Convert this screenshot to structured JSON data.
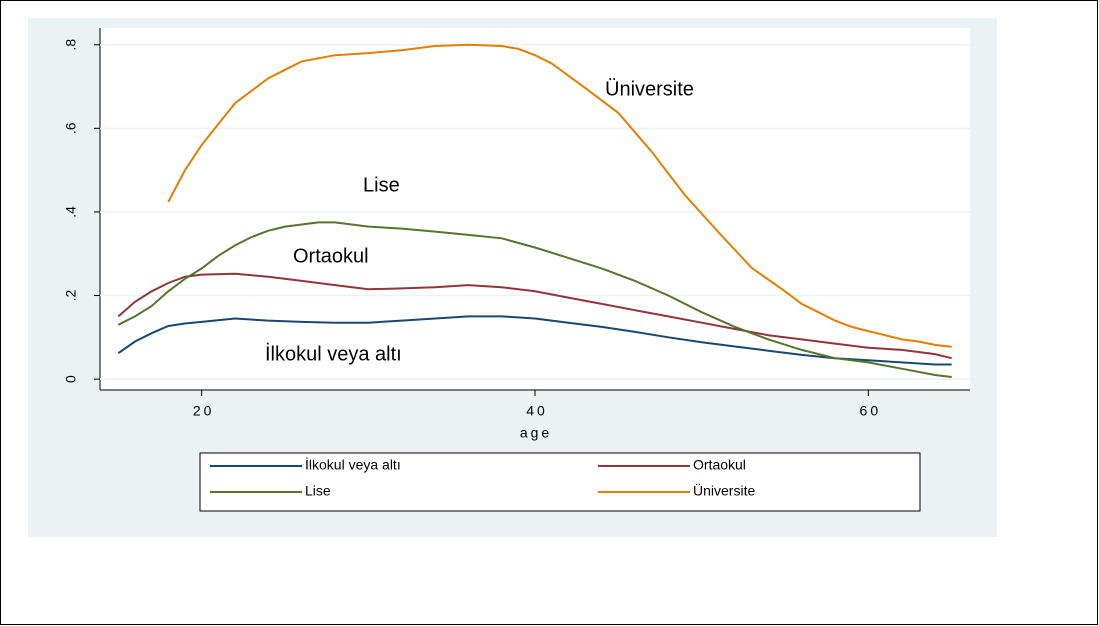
{
  "chart_data": {
    "type": "line",
    "xlabel": "age",
    "xlim": [
      13.9,
      66.1
    ],
    "ylim": [
      -0.026,
      0.84
    ],
    "xticks": [
      20,
      40,
      60
    ],
    "yticks": [
      0,
      {
        "value": 0.2,
        "label": ".2"
      },
      {
        "value": 0.4,
        "label": ".4"
      },
      {
        "value": 0.6,
        "label": ".6"
      },
      {
        "value": 0.8,
        "label": ".8"
      }
    ],
    "grid": true,
    "legend": "bottom",
    "annotations": [
      "Üniversite",
      "Lise",
      "Ortaokul",
      "İlkokul veya altı"
    ],
    "series": [
      {
        "name": "İlkokul veya altı",
        "color": "#1a476f",
        "x": [
          15,
          16,
          17,
          18,
          19,
          20,
          22,
          24,
          26,
          28,
          30,
          32,
          34,
          36,
          38,
          40,
          42,
          44,
          46,
          48,
          50,
          52,
          54,
          56,
          58,
          60,
          62,
          64,
          65
        ],
        "values": [
          0.062,
          0.09,
          0.11,
          0.127,
          0.133,
          0.137,
          0.145,
          0.14,
          0.137,
          0.135,
          0.135,
          0.14,
          0.145,
          0.15,
          0.15,
          0.145,
          0.135,
          0.125,
          0.113,
          0.1,
          0.088,
          0.078,
          0.068,
          0.058,
          0.05,
          0.045,
          0.04,
          0.035,
          0.035
        ]
      },
      {
        "name": "Ortaokul",
        "color": "#90353b",
        "x": [
          15,
          16,
          17,
          18,
          19,
          20,
          22,
          24,
          26,
          28,
          30,
          32,
          34,
          36,
          38,
          40,
          42,
          44,
          46,
          48,
          50,
          52,
          54,
          56,
          58,
          60,
          62,
          64,
          65
        ],
        "values": [
          0.15,
          0.185,
          0.21,
          0.23,
          0.245,
          0.25,
          0.252,
          0.245,
          0.235,
          0.225,
          0.215,
          0.217,
          0.22,
          0.225,
          0.22,
          0.21,
          0.195,
          0.18,
          0.165,
          0.15,
          0.135,
          0.12,
          0.105,
          0.095,
          0.085,
          0.075,
          0.07,
          0.06,
          0.05
        ]
      },
      {
        "name": "Lise",
        "color": "#55752f",
        "x": [
          15,
          16,
          17,
          18,
          19,
          20,
          21,
          22,
          23,
          24,
          25,
          26,
          27,
          28,
          30,
          32,
          34,
          36,
          38,
          40,
          42,
          44,
          46,
          48,
          50,
          52,
          54,
          56,
          58,
          60,
          62,
          64,
          65
        ],
        "values": [
          0.13,
          0.15,
          0.175,
          0.21,
          0.24,
          0.265,
          0.295,
          0.32,
          0.34,
          0.355,
          0.365,
          0.37,
          0.375,
          0.375,
          0.365,
          0.36,
          0.353,
          0.345,
          0.337,
          0.315,
          0.29,
          0.265,
          0.235,
          0.2,
          0.16,
          0.125,
          0.095,
          0.07,
          0.05,
          0.04,
          0.025,
          0.01,
          0.005
        ]
      },
      {
        "name": "Üniversite",
        "color": "#e37e00",
        "x": [
          18,
          19,
          20,
          21,
          22,
          23,
          24,
          25,
          26,
          28,
          30,
          32,
          34,
          36,
          38,
          39,
          40,
          41,
          43,
          45,
          47,
          49,
          51,
          53,
          55,
          56,
          57,
          58,
          59,
          60,
          61,
          62,
          63,
          64,
          65
        ],
        "values": [
          0.424,
          0.5,
          0.56,
          0.61,
          0.66,
          0.69,
          0.72,
          0.74,
          0.76,
          0.775,
          0.78,
          0.787,
          0.797,
          0.8,
          0.797,
          0.79,
          0.775,
          0.755,
          0.697,
          0.637,
          0.544,
          0.44,
          0.352,
          0.266,
          0.21,
          0.18,
          0.16,
          0.14,
          0.125,
          0.115,
          0.105,
          0.095,
          0.09,
          0.082,
          0.077
        ]
      }
    ]
  }
}
